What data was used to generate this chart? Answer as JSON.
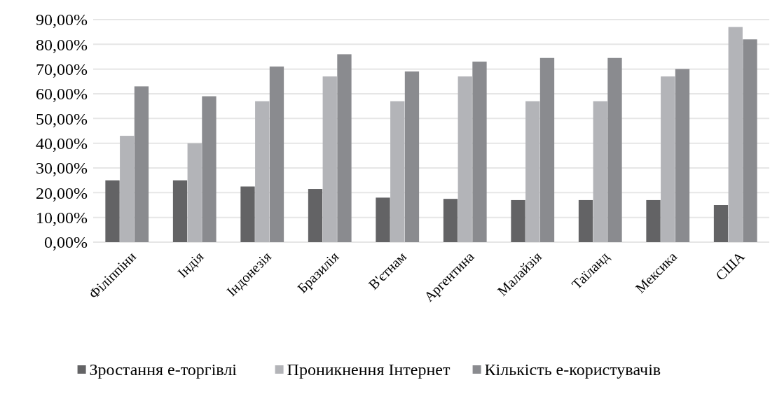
{
  "chart_data": {
    "type": "bar",
    "categories": [
      "Філіппіни",
      "Індія",
      "Індонезія",
      "Бразилія",
      "В'єтнам",
      "Аргентина",
      "Малайзія",
      "Таїланд",
      "Мексика",
      "США"
    ],
    "series": [
      {
        "name": "Зростання е-торгівлі",
        "color": "#636365",
        "values": [
          25,
          25,
          22.5,
          21.5,
          18,
          17.5,
          17,
          17,
          17,
          15
        ]
      },
      {
        "name": "Проникнення Інтернет",
        "color": "#b3b4b8",
        "values": [
          43,
          40,
          57,
          67,
          57,
          67,
          57,
          57,
          67,
          87
        ]
      },
      {
        "name": "Кількість е-користувачів",
        "color": "#8a8b8f",
        "values": [
          63,
          59,
          71,
          76,
          69,
          73,
          74.5,
          74.5,
          70,
          82
        ]
      }
    ],
    "ylim": [
      0,
      90
    ],
    "yticks": [
      {
        "value": 0,
        "label": "0,00%"
      },
      {
        "value": 10,
        "label": "10,00%"
      },
      {
        "value": 20,
        "label": "20,00%"
      },
      {
        "value": 30,
        "label": "30,00%"
      },
      {
        "value": 40,
        "label": "40,00%"
      },
      {
        "value": 50,
        "label": "50,00%"
      },
      {
        "value": 60,
        "label": "60,00%"
      },
      {
        "value": 70,
        "label": "70,00%"
      },
      {
        "value": 80,
        "label": "80,00%"
      },
      {
        "value": 90,
        "label": "90,00%"
      }
    ],
    "grid": "y",
    "legend": "bottom"
  }
}
